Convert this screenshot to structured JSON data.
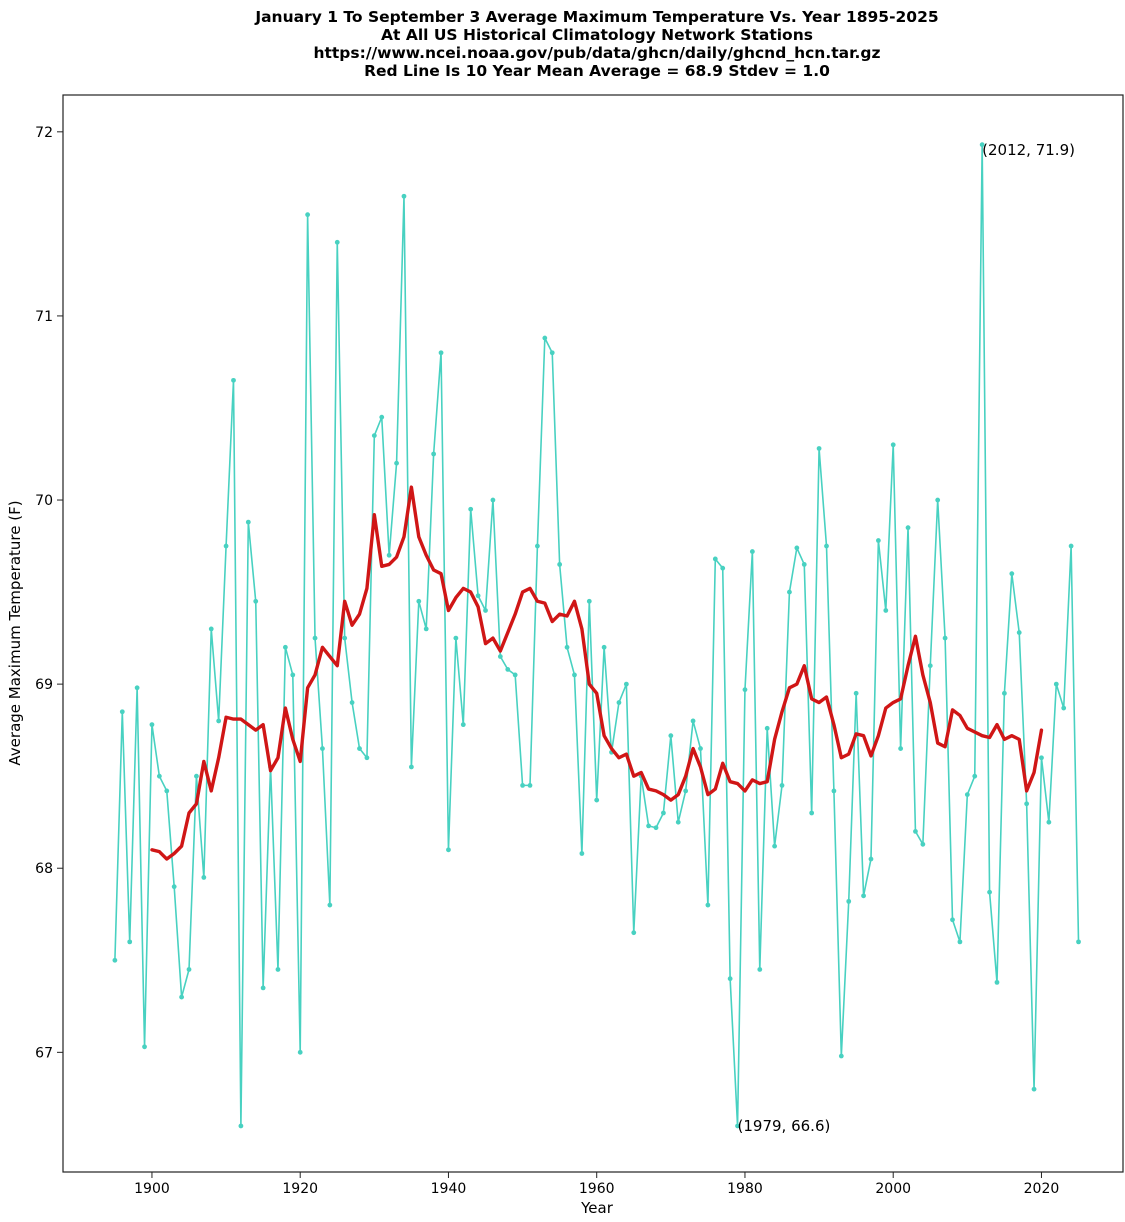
{
  "chart_data": {
    "type": "line",
    "title_lines": [
      "January 1 To September 3 Average Maximum Temperature Vs. Year 1895-2025",
      "At All US Historical Climatology Network Stations",
      "https://www.ncei.noaa.gov/pub/data/ghcn/daily/ghcnd_hcn.tar.gz",
      "Red Line Is 10 Year Mean  Average = 68.9 Stdev = 1.0"
    ],
    "xlabel": "Year",
    "ylabel": "Average Maximum Temperature (F)",
    "xlim": [
      1888,
      2031
    ],
    "ylim": [
      66.35,
      72.2
    ],
    "x_ticks": [
      1900,
      1920,
      1940,
      1960,
      1980,
      2000,
      2020
    ],
    "y_ticks": [
      67,
      68,
      69,
      70,
      71,
      72
    ],
    "grid": false,
    "series": [
      {
        "color": "#48d1c1",
        "marker": "dot",
        "x_start": 1895,
        "values": [
          67.5,
          68.85,
          67.6,
          68.98,
          67.03,
          68.78,
          68.5,
          68.42,
          67.9,
          67.3,
          67.45,
          68.5,
          67.95,
          69.3,
          68.8,
          69.75,
          70.65,
          66.6,
          69.88,
          69.45,
          67.35,
          68.55,
          67.45,
          69.2,
          69.05,
          67.0,
          71.55,
          69.25,
          68.65,
          67.8,
          71.4,
          69.25,
          68.9,
          68.65,
          68.6,
          70.35,
          70.45,
          69.7,
          70.2,
          71.65,
          68.55,
          69.45,
          69.3,
          70.25,
          70.8,
          68.1,
          69.25,
          68.78,
          69.95,
          69.48,
          69.4,
          70.0,
          69.15,
          69.08,
          69.05,
          68.45,
          68.45,
          69.75,
          70.88,
          70.8,
          69.65,
          69.2,
          69.05,
          68.08,
          69.45,
          68.37,
          69.2,
          68.63,
          68.9,
          69.0,
          67.65,
          68.5,
          68.23,
          68.22,
          68.3,
          68.72,
          68.25,
          68.42,
          68.8,
          68.65,
          67.8,
          69.68,
          69.63,
          67.4,
          66.6,
          68.97,
          69.72,
          67.45,
          68.76,
          68.12,
          68.45,
          69.5,
          69.74,
          69.65,
          68.3,
          70.28,
          69.75,
          68.42,
          66.98,
          67.82,
          68.95,
          67.85,
          68.05,
          69.78,
          69.4,
          70.3,
          68.65,
          69.85,
          68.2,
          68.13,
          69.1,
          70.0,
          69.25,
          67.72,
          67.6,
          68.4,
          68.5,
          71.93,
          67.87,
          67.38,
          68.95,
          69.6,
          69.28,
          68.35,
          66.8,
          68.6,
          68.25,
          69.0,
          68.87,
          69.75,
          67.6
        ]
      },
      {
        "name": "10 Year Mean",
        "color": "#d01616",
        "x_start": 1900,
        "values": [
          68.1,
          68.09,
          68.05,
          68.08,
          68.12,
          68.3,
          68.35,
          68.58,
          68.42,
          68.6,
          68.82,
          68.81,
          68.81,
          68.78,
          68.75,
          68.78,
          68.53,
          68.6,
          68.87,
          68.7,
          68.58,
          68.98,
          69.05,
          69.2,
          69.15,
          69.1,
          69.45,
          69.32,
          69.38,
          69.52,
          69.92,
          69.64,
          69.65,
          69.69,
          69.8,
          70.07,
          69.8,
          69.7,
          69.62,
          69.6,
          69.4,
          69.47,
          69.52,
          69.5,
          69.42,
          69.22,
          69.25,
          69.18,
          69.28,
          69.38,
          69.5,
          69.52,
          69.45,
          69.44,
          69.34,
          69.38,
          69.37,
          69.45,
          69.3,
          69.0,
          68.95,
          68.72,
          68.65,
          68.6,
          68.62,
          68.5,
          68.52,
          68.43,
          68.42,
          68.4,
          68.37,
          68.4,
          68.5,
          68.65,
          68.55,
          68.4,
          68.43,
          68.57,
          68.47,
          68.46,
          68.42,
          68.48,
          68.46,
          68.47,
          68.7,
          68.85,
          68.98,
          69.0,
          69.1,
          68.92,
          68.9,
          68.93,
          68.78,
          68.6,
          68.62,
          68.73,
          68.72,
          68.61,
          68.72,
          68.87,
          68.9,
          68.92,
          69.1,
          69.26,
          69.05,
          68.9,
          68.68,
          68.66,
          68.86,
          68.83,
          68.76,
          68.74,
          68.72,
          68.71,
          68.78,
          68.7,
          68.72,
          68.7,
          68.42,
          68.52,
          68.75
        ]
      }
    ],
    "annotations": [
      {
        "x": 2012,
        "y": 71.9,
        "text": "(2012, 71.9)"
      },
      {
        "x": 1979,
        "y": 66.6,
        "text": "(1979, 66.6)"
      }
    ]
  }
}
